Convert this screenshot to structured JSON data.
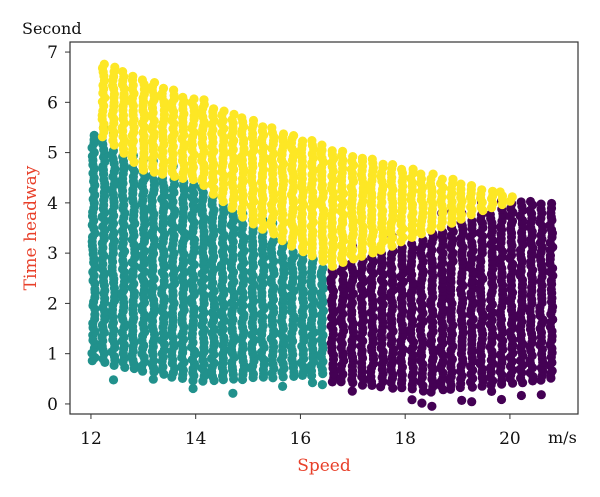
{
  "chart_data": {
    "type": "scatter",
    "title": "",
    "xlabel": "Speed",
    "ylabel": "Time headway",
    "x_unit": "m/s",
    "y_unit": "Second",
    "xlim": [
      11.6,
      21.3
    ],
    "ylim": [
      -0.2,
      7.2
    ],
    "x_ticks": [
      12,
      14,
      16,
      18,
      20
    ],
    "y_ticks": [
      0,
      1,
      2,
      3,
      4,
      5,
      6,
      7
    ],
    "grid": false,
    "legend": "none",
    "label_color": "#e8402a",
    "series": [
      {
        "color": "#21918c",
        "x_range": [
          12.0,
          16.6
        ],
        "lower_envelope": [
          [
            12.1,
            0.85
          ],
          [
            14.0,
            0.45
          ],
          [
            16.6,
            0.6
          ]
        ],
        "upper_envelope": [
          [
            12.1,
            5.4
          ],
          [
            13.0,
            4.6
          ],
          [
            14.0,
            4.4
          ],
          [
            15.0,
            3.6
          ],
          [
            16.0,
            3.0
          ],
          [
            16.6,
            2.7
          ]
        ]
      },
      {
        "color": "#440154",
        "x_range": [
          16.6,
          20.8
        ],
        "lower_envelope": [
          [
            16.6,
            0.45
          ],
          [
            18.5,
            0.25
          ],
          [
            20.8,
            0.5
          ]
        ],
        "upper_envelope": [
          [
            16.6,
            2.7
          ],
          [
            17.5,
            3.0
          ],
          [
            18.5,
            3.4
          ],
          [
            19.5,
            3.8
          ],
          [
            20.2,
            4.05
          ],
          [
            20.8,
            4.0
          ]
        ]
      },
      {
        "color": "#fde725",
        "x_range": [
          12.2,
          20.2
        ],
        "upper_envelope": [
          [
            12.2,
            6.8
          ],
          [
            14.0,
            6.1
          ],
          [
            16.0,
            5.3
          ],
          [
            18.0,
            4.7
          ],
          [
            20.2,
            4.15
          ]
        ]
      }
    ]
  }
}
